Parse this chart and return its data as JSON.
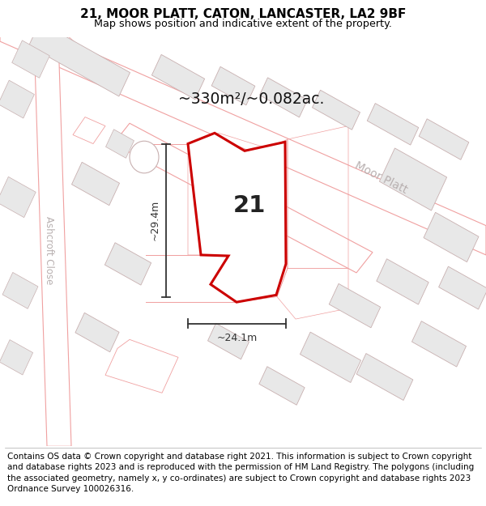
{
  "title_line1": "21, MOOR PLATT, CATON, LANCASTER, LA2 9BF",
  "title_line2": "Map shows position and indicative extent of the property.",
  "footer_text": "Contains OS data © Crown copyright and database right 2021. This information is subject to Crown copyright and database rights 2023 and is reproduced with the permission of HM Land Registry. The polygons (including the associated geometry, namely x, y co-ordinates) are subject to Crown copyright and database rights 2023 Ordnance Survey 100026316.",
  "area_label": "~330m²/~0.082ac.",
  "width_label": "~24.1m",
  "height_label": "~29.4m",
  "property_number": "21",
  "map_bg": "#ffffff",
  "road_outline": "#f0a0a0",
  "bldg_fill": "#e8e8e8",
  "bldg_outline": "#c8b0b0",
  "property_fill": "#ffffff",
  "property_edge": "#cc0000",
  "dim_color": "#333333",
  "street_color": "#b8b0b0",
  "title_fontsize": 11,
  "subtitle_fontsize": 9.2,
  "footer_fontsize": 7.5
}
